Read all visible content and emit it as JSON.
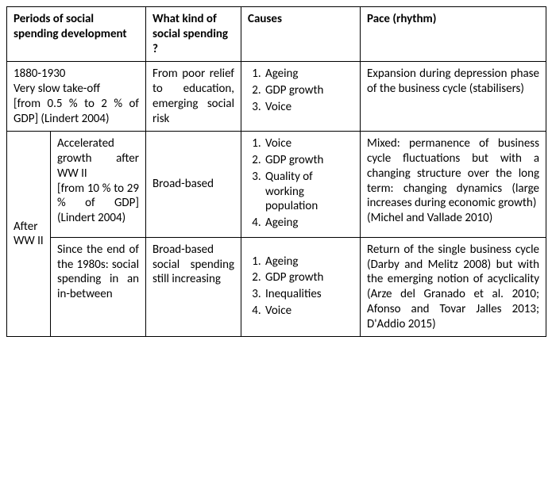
{
  "headers": {
    "periods": "Periods of social spending development",
    "kind": "What kind of social spending ?",
    "causes": "Causes",
    "pace": "Pace (rhythm)"
  },
  "row1": {
    "period": "1880-1930\nVery slow take-off\n[from 0.5 % to 2 % of GDP] (Lindert 2004)",
    "kind": "From poor relief to education, emerging social risk",
    "causes": [
      "Ageing",
      "GDP growth",
      "Voice"
    ],
    "pace": "Expansion during depression phase of the business cycle (stabilisers)"
  },
  "row2": {
    "period_group": "After WW II",
    "period": "Accelerated growth after WW II\n[from 10 % to 29 % of GDP] (Lindert 2004)",
    "kind": "Broad-based",
    "causes": [
      "Voice",
      "GDP growth",
      "Quality of working population",
      "Ageing"
    ],
    "pace": "Mixed: permanence of business cycle fluctuations but with a changing structure over the long term: changing dynamics (large increases during economic growth)\n(Michel and Vallade 2010)"
  },
  "row3": {
    "period": "Since the end of the 1980s: social spending in an in-between",
    "kind": "Broad-based social spending still increasing",
    "causes": [
      "Ageing",
      "GDP growth",
      "Inequalities",
      "Voice"
    ],
    "pace": "Return of the single business cycle (Darby and Melitz 2008) but with the emerging notion of acyclicality (Arze del Granado et al. 2010; Afonso and Tovar Jalles 2013; D'Addio 2015)"
  },
  "colwidths": {
    "c1a": 55,
    "c1b": 120,
    "c2": 120,
    "c3": 150,
    "c4": 234
  }
}
